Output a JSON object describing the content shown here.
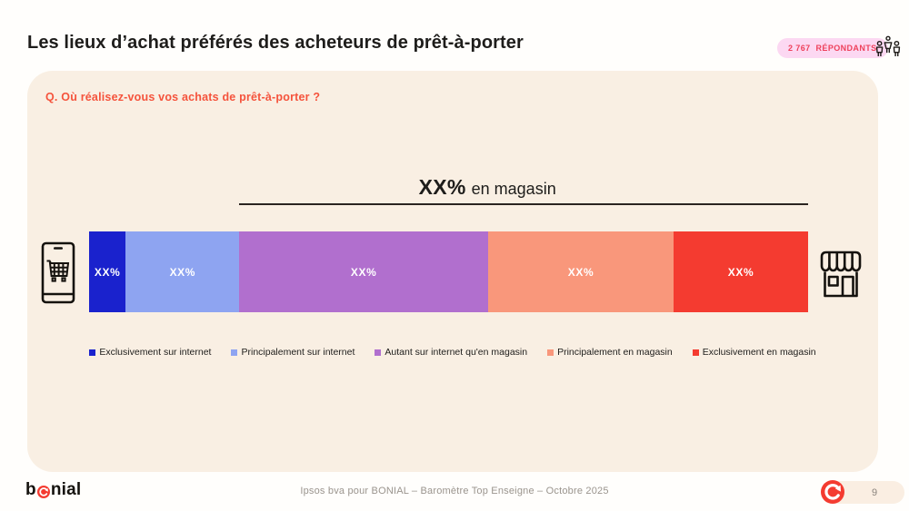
{
  "header": {
    "title": "Les lieux d’achat préférés des acheteurs de prêt-à-porter",
    "respondents_count": "2 767",
    "respondents_label": "RÉPONDANTS"
  },
  "card": {
    "question": "Q. Où réalisez-vous vos achats de prêt-à-porter ?"
  },
  "chart_data": {
    "type": "bar",
    "orientation": "horizontal-stacked",
    "annotation": {
      "value": "XX%",
      "label": "en magasin",
      "span_segments": [
        2,
        3,
        4
      ]
    },
    "segments": [
      {
        "label": "Exclusivement sur internet",
        "value_label": "XX%",
        "width_pct": 5.1,
        "color": "#1a22cd"
      },
      {
        "label": "Principalement sur internet",
        "value_label": "XX%",
        "width_pct": 15.8,
        "color": "#8ea4f1"
      },
      {
        "label": "Autant sur internet qu'en magasin",
        "value_label": "XX%",
        "width_pct": 34.6,
        "color": "#b16fce"
      },
      {
        "label": "Principalement en magasin",
        "value_label": "XX%",
        "width_pct": 25.8,
        "color": "#f9977b"
      },
      {
        "label": "Exclusivement en magasin",
        "value_label": "XX%",
        "width_pct": 18.7,
        "color": "#f43b30"
      }
    ],
    "left_icon": "smartphone-with-cart",
    "right_icon": "storefront",
    "legend_position": "bottom"
  },
  "footer": {
    "brand_prefix": "b",
    "brand_suffix": "nial",
    "source": "Ipsos bva pour BONIAL – Baromètre Top Enseigne – Octobre 2025",
    "page_number": "9"
  },
  "colors": {
    "card_bg": "#f9efe3",
    "badge_bg": "#fcd8f2",
    "badge_text": "#ee415c",
    "question_text": "#f5533c",
    "accent_red": "#f43b30"
  }
}
